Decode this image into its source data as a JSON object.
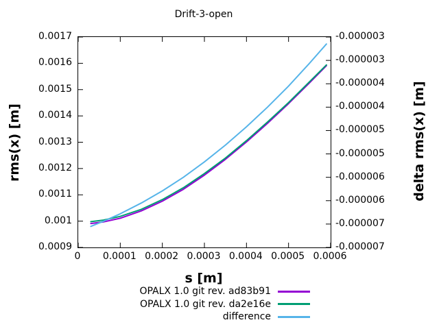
{
  "title": "Drift-3-open",
  "colors": {
    "background": "#ffffff",
    "axis": "#000000",
    "series_purple": "#9400d3",
    "series_green": "#009e73",
    "series_blue": "#56b4e9"
  },
  "chart_data": {
    "type": "line",
    "title": "Drift-3-open",
    "xlabel": "s [m]",
    "ylabel": "rms(x) [m]",
    "y2label": "delta rms(x) [m]",
    "grid": false,
    "legend_position": "below-right",
    "x_range": [
      0,
      0.0006
    ],
    "y1_range": [
      0.0009,
      0.0017
    ],
    "y2_range": [
      -7.5e-06,
      -3e-06
    ],
    "x_ticks": [
      "0",
      "0.0001",
      "0.0002",
      "0.0003",
      "0.0004",
      "0.0005",
      "0.0006"
    ],
    "y1_ticks": [
      "0.0017",
      "0.0016",
      "0.0015",
      "0.0014",
      "0.0013",
      "0.0012",
      "0.0011",
      "0.001",
      "0.0009"
    ],
    "y2_ticks": [
      "-0.000003",
      "-0.000003",
      "-0.000004",
      "-0.000004",
      "-0.000005",
      "-0.000005",
      "-0.000006",
      "-0.000006",
      "-0.000007",
      "-0.000007"
    ],
    "x": [
      3e-05,
      6e-05,
      0.0001,
      0.00015,
      0.0002,
      0.00025,
      0.0003,
      0.00035,
      0.0004,
      0.00045,
      0.0005,
      0.00055,
      0.00059
    ],
    "series": [
      {
        "name": "OPALX 1.0 git rev. ad83b91",
        "axis": "y1",
        "color": "#9400d3",
        "values": [
          0.000991,
          0.000997,
          0.001011,
          0.001039,
          0.001076,
          0.001121,
          0.001175,
          0.001235,
          0.001301,
          0.001372,
          0.001447,
          0.001526,
          0.001591
        ]
      },
      {
        "name": "OPALX 1.0 git rev. da2e16e",
        "axis": "y1",
        "color": "#009e73",
        "values": [
          0.000998,
          0.001004,
          0.001018,
          0.001045,
          0.001082,
          0.001127,
          0.001181,
          0.00124,
          0.001306,
          0.001377,
          0.001451,
          0.00153,
          0.001594
        ]
      },
      {
        "name": "difference",
        "axis": "y2",
        "color": "#56b4e9",
        "values": [
          -7.05e-06,
          -6.94e-06,
          -6.78e-06,
          -6.55e-06,
          -6.29e-06,
          -6e-06,
          -5.67e-06,
          -5.31e-06,
          -4.92e-06,
          -4.5e-06,
          -4.05e-06,
          -3.56e-06,
          -3.15e-06
        ]
      }
    ]
  }
}
